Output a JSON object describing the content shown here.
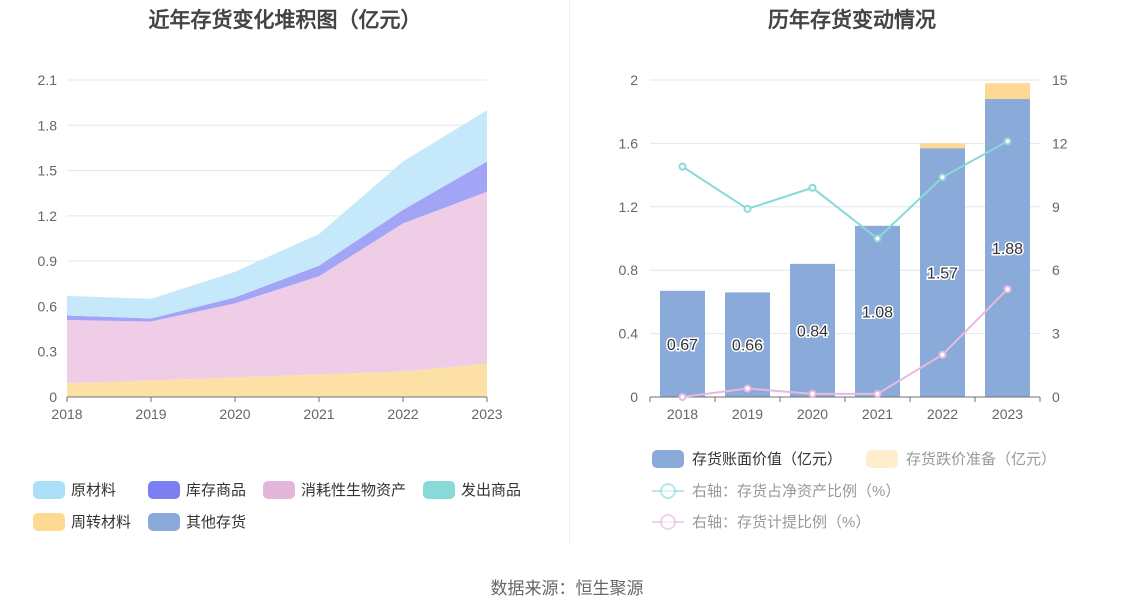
{
  "left_title": "近年存货变化堆积图（亿元）",
  "right_title": "历年存货变动情况",
  "source": "数据来源：恒生聚源",
  "chart_data": [
    {
      "type": "area",
      "stacked": true,
      "title": "近年存货变化堆积图（亿元）",
      "x": [
        "2018",
        "2019",
        "2020",
        "2021",
        "2022",
        "2023"
      ],
      "ylim": [
        0,
        2.1
      ],
      "yticks": [
        "0",
        "0.3",
        "0.6",
        "0.9",
        "1.2",
        "1.5",
        "1.8",
        "2.1"
      ],
      "grid": true,
      "legend_position": "bottom",
      "series": [
        {
          "name": "周转材料",
          "color": "#fde0a6",
          "values": [
            0.09,
            0.11,
            0.13,
            0.15,
            0.17,
            0.22
          ]
        },
        {
          "name": "消耗性生物资产",
          "color": "#efcde6",
          "values": [
            0.42,
            0.39,
            0.49,
            0.65,
            0.98,
            1.14
          ]
        },
        {
          "name": "库存商品",
          "color": "#a2a4f5",
          "values": [
            0.03,
            0.02,
            0.04,
            0.07,
            0.09,
            0.2
          ]
        },
        {
          "name": "原材料",
          "color": "#c5e9fa",
          "values": [
            0.13,
            0.13,
            0.17,
            0.21,
            0.32,
            0.34
          ]
        },
        {
          "name": "发出商品",
          "color": "#88d9d8",
          "values": [
            0,
            0,
            0,
            0,
            0,
            0
          ]
        },
        {
          "name": "其他存货",
          "color": "#8aa9d8",
          "values": [
            0,
            0,
            0,
            0,
            0,
            0
          ]
        }
      ],
      "legend": [
        {
          "name": "原材料",
          "color": "#a9e0f8"
        },
        {
          "name": "库存商品",
          "color": "#7b7ff2"
        },
        {
          "name": "消耗性生物资产",
          "color": "#e5b6db"
        },
        {
          "name": "发出商品",
          "color": "#88d9d8"
        },
        {
          "name": "周转材料",
          "color": "#fdd993"
        },
        {
          "name": "其他存货",
          "color": "#8aabd9"
        }
      ]
    },
    {
      "type": "bar",
      "title": "历年存货变动情况",
      "categories": [
        "2018",
        "2019",
        "2020",
        "2021",
        "2022",
        "2023"
      ],
      "ylim": [
        0,
        2
      ],
      "yticks": [
        "0",
        "0.4",
        "0.8",
        "1.2",
        "1.6",
        "2"
      ],
      "y2lim": [
        0,
        15
      ],
      "y2ticks": [
        "0",
        "3",
        "6",
        "9",
        "12",
        "15"
      ],
      "grid": true,
      "legend_position": "bottom",
      "bars": [
        {
          "name": "存货账面价值（亿元）",
          "color": "#8aabd9",
          "values": [
            0.67,
            0.66,
            0.84,
            1.08,
            1.57,
            1.88
          ],
          "labels": [
            "0.67",
            "0.66",
            "0.84",
            "1.08",
            "1.57",
            "1.88"
          ]
        },
        {
          "name": "存货跌价准备（亿元）",
          "color": "#fdd993",
          "values": [
            0,
            0,
            0,
            0,
            0.03,
            0.1
          ]
        }
      ],
      "lines": [
        {
          "name": "右轴：存货占净资产比例（%）",
          "color": "#88d9d8",
          "values": [
            10.9,
            8.9,
            9.9,
            7.5,
            10.4,
            12.1
          ]
        },
        {
          "name": "右轴：存货计提比例（%）",
          "color": "#e8b9de",
          "values": [
            0.0,
            0.4,
            0.15,
            0.15,
            2.0,
            5.1
          ]
        }
      ]
    }
  ]
}
